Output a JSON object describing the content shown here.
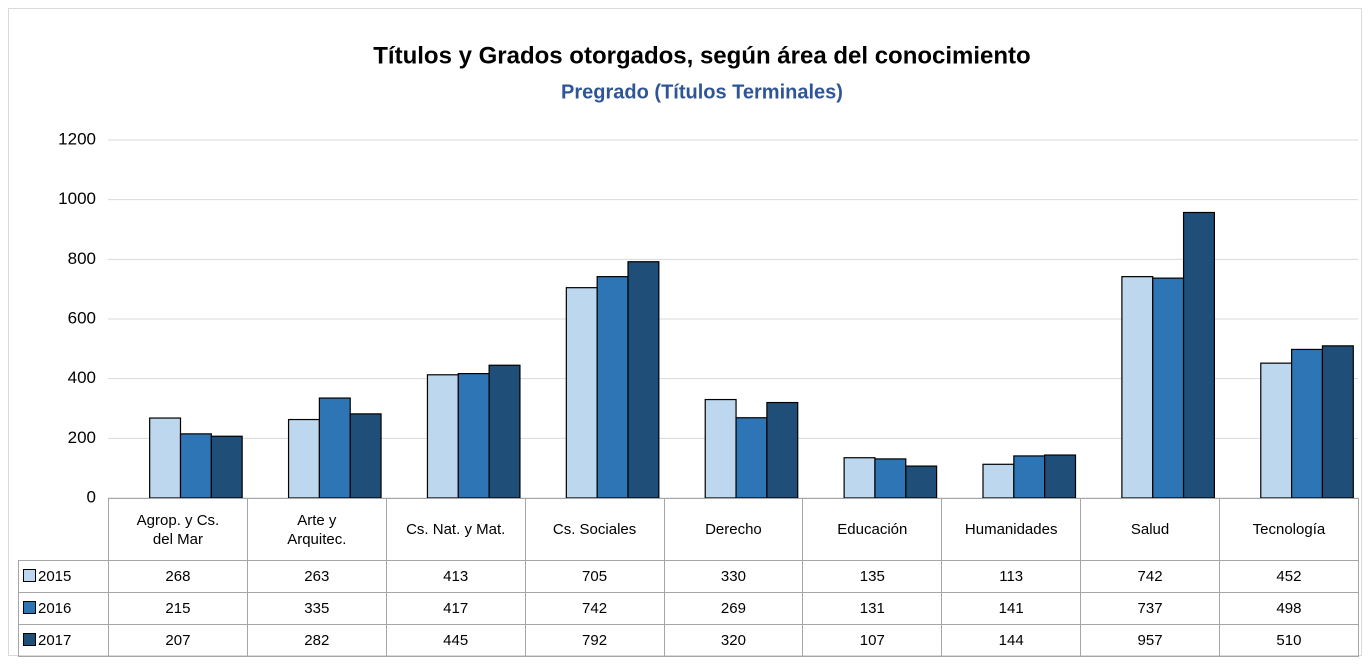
{
  "chart_data": {
    "type": "bar",
    "title": "Títulos y Grados otorgados, según área del conocimiento",
    "subtitle": "Pregrado (Títulos Terminales)",
    "categories": [
      "Agrop. y Cs.\ndel Mar",
      "Arte y\nArquitec.",
      "Cs. Nat. y Mat.",
      "Cs. Sociales",
      "Derecho",
      "Educación",
      "Humanidades",
      "Salud",
      "Tecnología"
    ],
    "series": [
      {
        "name": "2015",
        "color": "#bdd7ee",
        "values": [
          268,
          263,
          413,
          705,
          330,
          135,
          113,
          742,
          452
        ]
      },
      {
        "name": "2016",
        "color": "#2e75b6",
        "values": [
          215,
          335,
          417,
          742,
          269,
          131,
          141,
          737,
          498
        ]
      },
      {
        "name": "2017",
        "color": "#1f4e79",
        "values": [
          207,
          282,
          445,
          792,
          320,
          107,
          144,
          957,
          510
        ]
      }
    ],
    "ylim": [
      0,
      1200
    ],
    "yticks": [
      0,
      200,
      400,
      600,
      800,
      1000,
      1200
    ],
    "grid": true
  }
}
